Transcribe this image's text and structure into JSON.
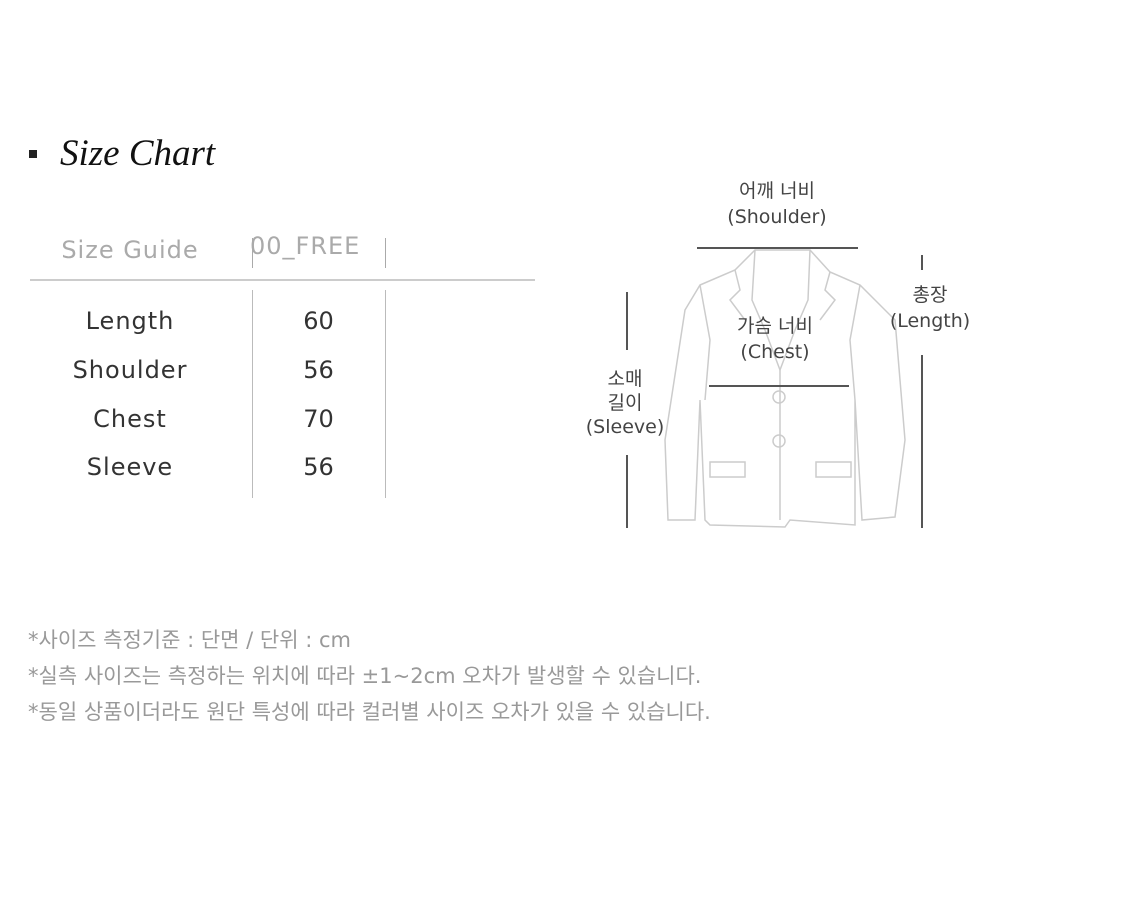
{
  "title": "Size Chart",
  "table": {
    "header_label": "Size Guide",
    "size_column": "00_FREE",
    "rows": [
      {
        "label": "Length",
        "value": "60"
      },
      {
        "label": "Shoulder",
        "value": "56"
      },
      {
        "label": "Chest",
        "value": "70"
      },
      {
        "label": "Sleeve",
        "value": "56"
      }
    ]
  },
  "diagram": {
    "shoulder_ko": "어깨 너비",
    "shoulder_en": "(Shoulder)",
    "chest_ko": "가슴 너비",
    "chest_en": "(Chest)",
    "length_ko": "총장",
    "length_en": "(Length)",
    "sleeve_ko_1": "소매",
    "sleeve_ko_2": "길이",
    "sleeve_en": "(Sleeve)"
  },
  "notes": [
    "*사이즈 측정기준 : 단면 / 단위 : cm",
    "*실측 사이즈는 측정하는 위치에 따라 ±1~2cm 오차가 발생할 수 있습니다.",
    "*동일 상품이더라도 원단 특성에 따라 컬러별 사이즈 오차가 있을 수 있습니다."
  ]
}
